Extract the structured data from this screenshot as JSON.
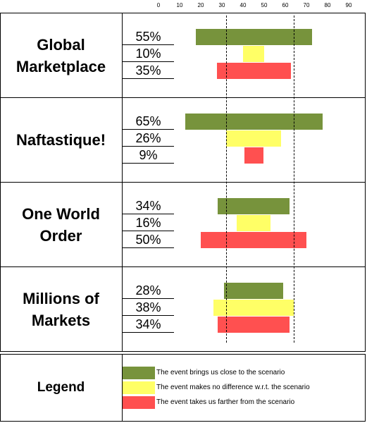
{
  "chart_data": {
    "type": "bar",
    "axis": {
      "ticks": [
        "0",
        "10",
        "20",
        "30",
        "40",
        "50",
        "60",
        "70",
        "80",
        "90"
      ],
      "xlim": [
        0,
        90
      ]
    },
    "reference_lines": [
      32,
      64
    ],
    "scenarios": [
      {
        "name": "Global Marketplace",
        "name_lines": [
          "Global",
          "Marketplace"
        ],
        "bars": [
          {
            "label": "55%",
            "value": 55,
            "category": "closer"
          },
          {
            "label": "10%",
            "value": 10,
            "category": "no_difference"
          },
          {
            "label": "35%",
            "value": 35,
            "category": "farther"
          }
        ]
      },
      {
        "name": "Naftastique!",
        "name_lines": [
          "Naftastique!"
        ],
        "bars": [
          {
            "label": "65%",
            "value": 65,
            "category": "closer"
          },
          {
            "label": "26%",
            "value": 26,
            "category": "no_difference"
          },
          {
            "label": "9%",
            "value": 9,
            "category": "farther"
          }
        ]
      },
      {
        "name": "One World Order",
        "name_lines": [
          "One World",
          "Order"
        ],
        "bars": [
          {
            "label": "34%",
            "value": 34,
            "category": "closer"
          },
          {
            "label": "16%",
            "value": 16,
            "category": "no_difference"
          },
          {
            "label": "50%",
            "value": 50,
            "category": "farther"
          }
        ]
      },
      {
        "name": "Millions of Markets",
        "name_lines": [
          "Millions of",
          "Markets"
        ],
        "bars": [
          {
            "label": "28%",
            "value": 28,
            "category": "closer"
          },
          {
            "label": "38%",
            "value": 38,
            "category": "no_difference"
          },
          {
            "label": "34%",
            "value": 34,
            "category": "farther"
          }
        ]
      }
    ],
    "legend": {
      "title": "Legend",
      "entries": [
        {
          "category": "closer",
          "label": "The event brings us close to the scenario",
          "color": "#77933c"
        },
        {
          "category": "no_difference",
          "label": "The event makes no difference w.r.t. the scenario",
          "color": "#ffff66"
        },
        {
          "category": "farther",
          "label": "The event takes us farther from the scenario",
          "color": "#ff5050"
        }
      ]
    }
  }
}
